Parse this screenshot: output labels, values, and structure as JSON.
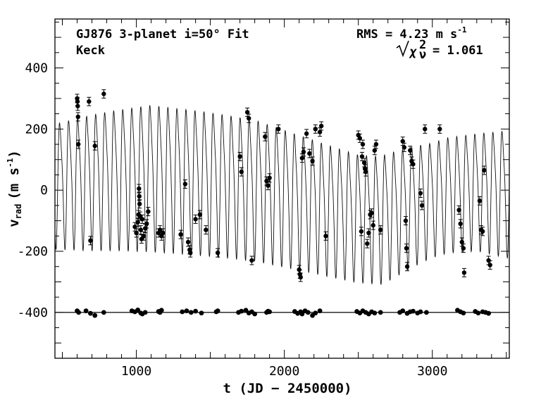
{
  "chart_data": {
    "type": "scatter",
    "annotations": {
      "title_left_1": "GJ876 3-planet i=50° Fit",
      "title_left_2": "Keck",
      "rms": "RMS = 4.23 m s",
      "rms_sup": "-1",
      "chi_label": "χ",
      "chi_sup": "2",
      "chi_sub": "ν",
      "chi_value": "= 1.061"
    },
    "xlabel": "t (JD − 2450000)",
    "ylabel_main": "v",
    "ylabel_sub": "rad",
    "ylabel_units": "(m s",
    "ylabel_units_sup": "-1",
    "ylabel_units_close": ")",
    "xlim": [
      450,
      3520
    ],
    "ylim": [
      -550,
      560
    ],
    "xticks_major": [
      1000,
      2000,
      3000
    ],
    "xticks_minor_step": 100,
    "yticks_major": [
      -400,
      -200,
      0,
      200,
      400
    ],
    "yticks_minor_step": 50,
    "residual_offset": -400,
    "model": {
      "period_days": 61.0,
      "phase_days": 470,
      "amplitude_segments": [
        [
          450,
          235
        ],
        [
          700,
          255
        ],
        [
          1100,
          275
        ],
        [
          1500,
          270
        ],
        [
          1800,
          265
        ],
        [
          2200,
          250
        ],
        [
          2500,
          240
        ],
        [
          2700,
          240
        ],
        [
          3000,
          215
        ],
        [
          3300,
          220
        ],
        [
          3520,
          240
        ]
      ],
      "center_segments": [
        [
          450,
          30
        ],
        [
          800,
          50
        ],
        [
          1100,
          60
        ],
        [
          1500,
          40
        ],
        [
          1800,
          20
        ],
        [
          2200,
          -35
        ],
        [
          2500,
          -75
        ],
        [
          2650,
          -80
        ],
        [
          2850,
          -40
        ],
        [
          3100,
          0
        ],
        [
          3300,
          10
        ],
        [
          3520,
          5
        ]
      ]
    },
    "series": [
      {
        "name": "",
        "points": [
          [
            600,
            300
          ],
          [
            602,
            290
          ],
          [
            604,
            275
          ],
          [
            606,
            240
          ],
          [
            608,
            150
          ],
          [
            680,
            290
          ],
          [
            690,
            -165
          ],
          [
            720,
            145
          ],
          [
            780,
            315
          ],
          [
            990,
            -120
          ],
          [
            1000,
            -140
          ],
          [
            1010,
            -105
          ],
          [
            1015,
            -80
          ],
          [
            1018,
            5
          ],
          [
            1020,
            -20
          ],
          [
            1022,
            -45
          ],
          [
            1025,
            -85
          ],
          [
            1030,
            -130
          ],
          [
            1035,
            -160
          ],
          [
            1040,
            -95
          ],
          [
            1050,
            -150
          ],
          [
            1060,
            -125
          ],
          [
            1070,
            -110
          ],
          [
            1080,
            -70
          ],
          [
            1150,
            -140
          ],
          [
            1160,
            -130
          ],
          [
            1170,
            -150
          ],
          [
            1180,
            -140
          ],
          [
            1300,
            -145
          ],
          [
            1330,
            20
          ],
          [
            1350,
            -170
          ],
          [
            1360,
            -195
          ],
          [
            1365,
            -205
          ],
          [
            1400,
            -95
          ],
          [
            1430,
            -80
          ],
          [
            1470,
            -130
          ],
          [
            1550,
            -205
          ],
          [
            1700,
            110
          ],
          [
            1710,
            60
          ],
          [
            1750,
            255
          ],
          [
            1760,
            235
          ],
          [
            1780,
            -230
          ],
          [
            1870,
            175
          ],
          [
            1880,
            30
          ],
          [
            1890,
            15
          ],
          [
            1900,
            40
          ],
          [
            1960,
            200
          ],
          [
            2100,
            -260
          ],
          [
            2105,
            -275
          ],
          [
            2110,
            -285
          ],
          [
            2120,
            105
          ],
          [
            2130,
            125
          ],
          [
            2150,
            185
          ],
          [
            2170,
            120
          ],
          [
            2190,
            95
          ],
          [
            2210,
            200
          ],
          [
            2240,
            190
          ],
          [
            2250,
            210
          ],
          [
            2280,
            -150
          ],
          [
            2500,
            180
          ],
          [
            2510,
            170
          ],
          [
            2520,
            -135
          ],
          [
            2525,
            110
          ],
          [
            2530,
            150
          ],
          [
            2540,
            90
          ],
          [
            2545,
            70
          ],
          [
            2550,
            60
          ],
          [
            2560,
            -175
          ],
          [
            2570,
            -140
          ],
          [
            2580,
            -80
          ],
          [
            2590,
            -75
          ],
          [
            2600,
            -115
          ],
          [
            2610,
            130
          ],
          [
            2620,
            150
          ],
          [
            2650,
            -130
          ],
          [
            2800,
            160
          ],
          [
            2810,
            140
          ],
          [
            2820,
            -100
          ],
          [
            2825,
            -190
          ],
          [
            2830,
            -250
          ],
          [
            2850,
            130
          ],
          [
            2860,
            95
          ],
          [
            2870,
            85
          ],
          [
            2920,
            -10
          ],
          [
            2930,
            -50
          ],
          [
            2950,
            200
          ],
          [
            3050,
            200
          ],
          [
            3180,
            -65
          ],
          [
            3190,
            -110
          ],
          [
            3200,
            -170
          ],
          [
            3210,
            -190
          ],
          [
            3215,
            -270
          ],
          [
            3320,
            -35
          ],
          [
            3330,
            -130
          ],
          [
            3340,
            -135
          ],
          [
            3350,
            65
          ],
          [
            3380,
            -230
          ],
          [
            3390,
            -245
          ]
        ]
      }
    ],
    "residuals": [
      [
        600,
        -395
      ],
      [
        610,
        -400
      ],
      [
        660,
        -395
      ],
      [
        690,
        -403
      ],
      [
        720,
        -410
      ],
      [
        780,
        -400
      ],
      [
        970,
        -395
      ],
      [
        990,
        -398
      ],
      [
        1010,
        -392
      ],
      [
        1030,
        -402
      ],
      [
        1040,
        -405
      ],
      [
        1060,
        -400
      ],
      [
        1150,
        -397
      ],
      [
        1160,
        -400
      ],
      [
        1170,
        -393
      ],
      [
        1310,
        -398
      ],
      [
        1340,
        -395
      ],
      [
        1370,
        -400
      ],
      [
        1400,
        -396
      ],
      [
        1440,
        -402
      ],
      [
        1540,
        -398
      ],
      [
        1550,
        -395
      ],
      [
        1690,
        -400
      ],
      [
        1710,
        -396
      ],
      [
        1740,
        -393
      ],
      [
        1760,
        -402
      ],
      [
        1780,
        -398
      ],
      [
        1800,
        -405
      ],
      [
        1880,
        -400
      ],
      [
        1890,
        -396
      ],
      [
        1900,
        -398
      ],
      [
        2070,
        -397
      ],
      [
        2090,
        -403
      ],
      [
        2110,
        -398
      ],
      [
        2120,
        -405
      ],
      [
        2140,
        -395
      ],
      [
        2160,
        -400
      ],
      [
        2190,
        -410
      ],
      [
        2210,
        -402
      ],
      [
        2240,
        -395
      ],
      [
        2490,
        -397
      ],
      [
        2510,
        -402
      ],
      [
        2530,
        -395
      ],
      [
        2550,
        -400
      ],
      [
        2570,
        -405
      ],
      [
        2590,
        -398
      ],
      [
        2610,
        -402
      ],
      [
        2650,
        -400
      ],
      [
        2780,
        -400
      ],
      [
        2800,
        -395
      ],
      [
        2830,
        -403
      ],
      [
        2850,
        -398
      ],
      [
        2870,
        -396
      ],
      [
        2900,
        -402
      ],
      [
        2920,
        -398
      ],
      [
        2960,
        -400
      ],
      [
        3170,
        -393
      ],
      [
        3190,
        -398
      ],
      [
        3210,
        -402
      ],
      [
        3290,
        -397
      ],
      [
        3310,
        -402
      ],
      [
        3340,
        -398
      ],
      [
        3360,
        -400
      ],
      [
        3380,
        -403
      ]
    ]
  }
}
